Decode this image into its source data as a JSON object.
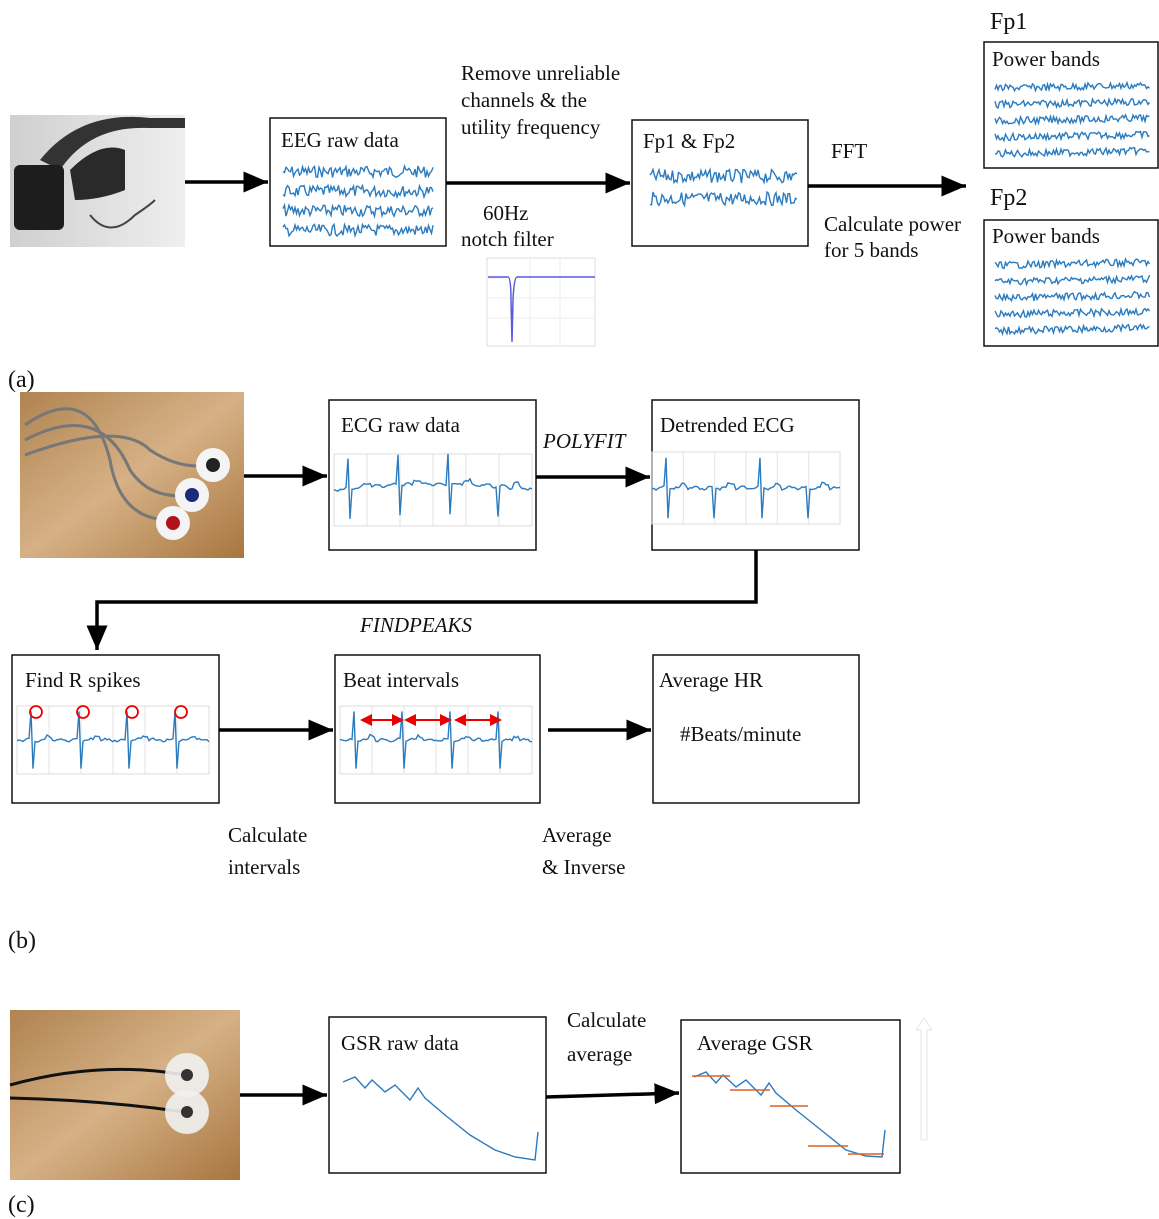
{
  "panel_a": {
    "label": "(a)",
    "eeg_box": "EEG raw data",
    "filter_step": [
      "Remove unreliable",
      "channels & the",
      "utility frequency"
    ],
    "notch": [
      "60Hz",
      "notch filter"
    ],
    "fp_box": "Fp1 & Fp2",
    "fft": "FFT",
    "power_step": [
      "Calculate power",
      "for 5 bands"
    ],
    "fp1": {
      "title": "Fp1",
      "box": "Power bands"
    },
    "fp2": {
      "title": "Fp2",
      "box": "Power bands"
    }
  },
  "panel_b": {
    "label": "(b)",
    "ecg_box": "ECG raw data",
    "polyfit": "POLYFIT",
    "detrended_box": "Detrended ECG",
    "findpeaks": "FINDPEAKS",
    "spikes_box": "Find R spikes",
    "intervals_box": "Beat intervals",
    "hr_box": {
      "title": "Average HR",
      "text": "#Beats/minute"
    },
    "interval_step": [
      "Calculate",
      "intervals"
    ],
    "average_step": [
      "Average",
      "& Inverse"
    ]
  },
  "panel_c": {
    "label": "(c)",
    "gsr_box": "GSR raw data",
    "average_step": [
      "Calculate",
      "average"
    ],
    "avg_box": "Average GSR"
  }
}
